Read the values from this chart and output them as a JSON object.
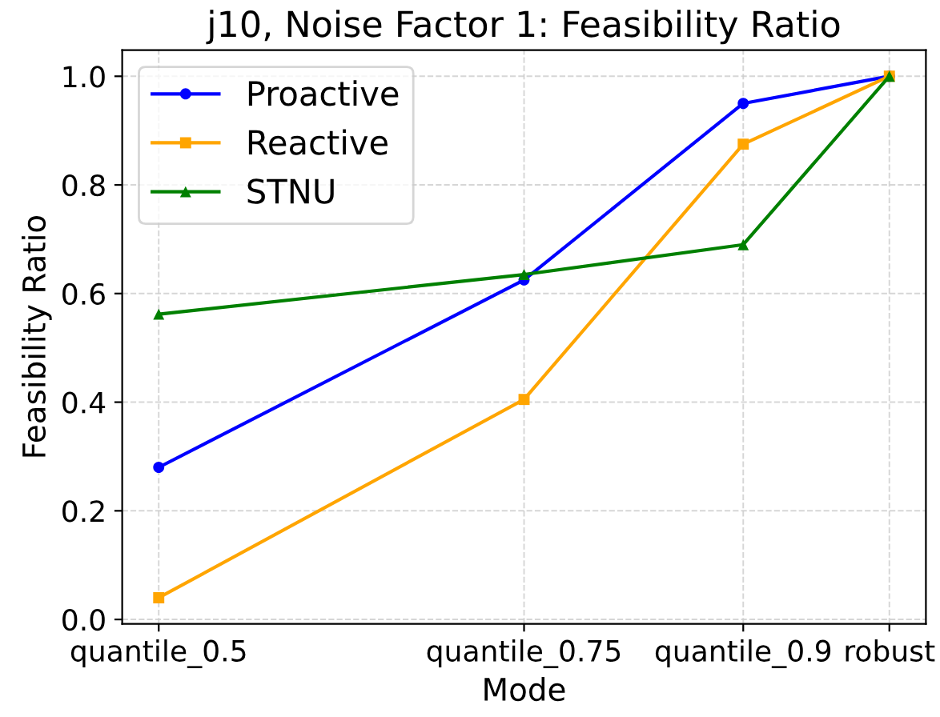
{
  "chart_data": {
    "type": "line",
    "title": "j10, Noise Factor 1: Feasibility Ratio",
    "xlabel": "Mode",
    "ylabel": "Feasibility Ratio",
    "x": [
      0.5,
      0.75,
      0.9,
      1.0
    ],
    "series": [
      {
        "name": "Proactive",
        "color": "#0000ff",
        "marker": "circle",
        "values": [
          0.28,
          0.625,
          0.95,
          1.0
        ]
      },
      {
        "name": "Reactive",
        "color": "#ffa500",
        "marker": "square",
        "values": [
          0.04,
          0.405,
          0.875,
          1.0
        ]
      },
      {
        "name": "STNU",
        "color": "#008000",
        "marker": "triangle",
        "values": [
          0.562,
          0.635,
          0.69,
          1.0
        ]
      }
    ],
    "xlim": [
      0.475,
      1.025
    ],
    "xticks": [
      {
        "value": 0.5,
        "label": "quantile_0.5"
      },
      {
        "value": 0.75,
        "label": "quantile_0.75"
      },
      {
        "value": 0.9,
        "label": "quantile_0.9"
      },
      {
        "value": 1.0,
        "label": "robust"
      }
    ],
    "ylim": [
      -0.008,
      1.048
    ],
    "yticks": [
      {
        "value": 0.0,
        "label": "0.0"
      },
      {
        "value": 0.2,
        "label": "0.2"
      },
      {
        "value": 0.4,
        "label": "0.4"
      },
      {
        "value": 0.6,
        "label": "0.6"
      },
      {
        "value": 0.8,
        "label": "0.8"
      },
      {
        "value": 1.0,
        "label": "1.0"
      }
    ],
    "grid": true,
    "legend": "top left",
    "line_style": "solid"
  }
}
